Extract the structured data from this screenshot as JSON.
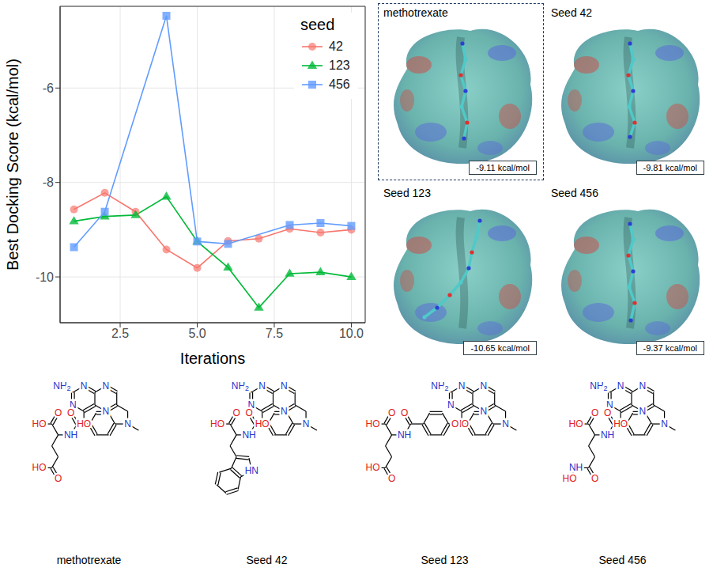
{
  "chart_data": {
    "type": "line",
    "x_label": "Iterations",
    "y_label": "Best Docking Score (kcal/mol)",
    "xlim": [
      0.55,
      10.45
    ],
    "xticks": [
      2.5,
      {
        "value": 5,
        "label": "5.0"
      },
      7.5,
      {
        "value": 10,
        "label": "10.0"
      }
    ],
    "ylim": [
      -10.97,
      -4.27
    ],
    "yticks": [
      -10,
      -8,
      -6
    ],
    "grid": true,
    "legend": "top-right",
    "legend_title": "seed",
    "series": [
      {
        "name": "42",
        "color": "#F8766D",
        "marker": "circle",
        "x": [
          1,
          2,
          3,
          4,
          5,
          6,
          7,
          8,
          9,
          10
        ],
        "values": [
          -8.57,
          -8.22,
          -8.62,
          -9.42,
          -9.81,
          -9.24,
          -9.19,
          -8.98,
          -9.06,
          -9.0
        ]
      },
      {
        "name": "123",
        "color": "#00BA38",
        "marker": "triangle",
        "x": [
          1,
          2,
          3,
          4,
          5,
          6,
          7,
          8,
          9,
          10
        ],
        "values": [
          -8.82,
          -8.72,
          -8.69,
          -8.3,
          -9.25,
          -9.8,
          -10.65,
          -9.93,
          -9.9,
          -10.0
        ]
      },
      {
        "name": "456",
        "color": "#619CFF",
        "marker": "square",
        "x": [
          1,
          2,
          4,
          5,
          6,
          8,
          9,
          10
        ],
        "values": [
          -9.37,
          -8.62,
          -4.47,
          -9.25,
          -9.3,
          -8.9,
          -8.86,
          -8.92
        ]
      }
    ]
  },
  "docking_panels": [
    {
      "title": "methotrexate",
      "score": "-9.11 kcal/mol"
    },
    {
      "title": "Seed 42",
      "score": "-9.81 kcal/mol"
    },
    {
      "title": "Seed 123",
      "score": "-10.65 kcal/mol"
    },
    {
      "title": "Seed 456",
      "score": "-9.37 kcal/mol"
    }
  ],
  "molecules": [
    {
      "name": "methotrexate",
      "atoms": [
        "NH2",
        "N",
        "N",
        "HO",
        "N",
        "N",
        "N",
        "O",
        "NH",
        "O",
        "HO",
        "O",
        "HO"
      ]
    },
    {
      "name": "Seed 42",
      "atoms": [
        "NH2",
        "N",
        "N",
        "HO",
        "N",
        "N",
        "N",
        "O",
        "NH",
        "O",
        "HO",
        "HN"
      ]
    },
    {
      "name": "Seed 123",
      "atoms": [
        "NH2",
        "N",
        "N",
        "HO",
        "N",
        "N",
        "N",
        "O",
        "O",
        "NH",
        "O",
        "HO",
        "O",
        "HO"
      ]
    },
    {
      "name": "Seed 456",
      "atoms": [
        "NH2",
        "N",
        "N",
        "HO",
        "N",
        "N",
        "N",
        "O",
        "NH",
        "O",
        "HO",
        "O",
        "NH",
        "HO"
      ]
    }
  ]
}
